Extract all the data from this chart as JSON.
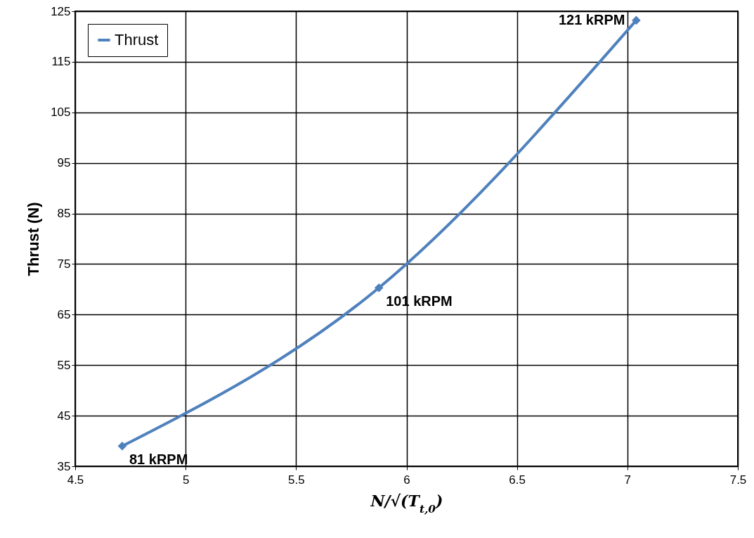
{
  "chart_data": {
    "type": "line",
    "xlabel": "N/√(T$_{t,0}$)",
    "ylabel": "Thrust (N)",
    "x": [
      4.713,
      5.875,
      7.04
    ],
    "series": [
      {
        "name": "Thrust",
        "color": "#4f81bd",
        "values": [
          39.0,
          70.3,
          123.2
        ]
      }
    ],
    "xlim": [
      4.5,
      7.5
    ],
    "xticks": [
      4.5,
      5,
      5.5,
      6,
      6.5,
      7,
      7.5
    ],
    "ylim": [
      35,
      125
    ],
    "yticks": [
      35,
      45,
      55,
      65,
      75,
      85,
      95,
      105,
      115,
      125
    ],
    "grid": true,
    "legend": "top left",
    "marker": "diamond",
    "line_style": "solid",
    "annotations": [
      {
        "text": "81 kRPM",
        "x": 4.713,
        "y": 39.0
      },
      {
        "text": "101 kRPM",
        "x": 5.875,
        "y": 70.3
      },
      {
        "text": "121 kRPM",
        "x": 7.04,
        "y": 123.2
      }
    ]
  }
}
